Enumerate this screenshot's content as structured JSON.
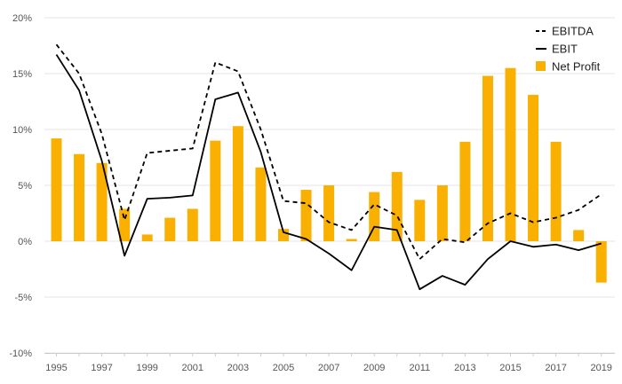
{
  "chart_data": {
    "type": "bar",
    "x": [
      1995,
      1996,
      1997,
      1998,
      1999,
      2000,
      2001,
      2002,
      2003,
      2004,
      2005,
      2006,
      2007,
      2008,
      2009,
      2010,
      2011,
      2012,
      2013,
      2014,
      2015,
      2016,
      2017,
      2018,
      2019
    ],
    "x_tick_labels": [
      "1995",
      "1997",
      "1999",
      "2001",
      "2003",
      "2005",
      "2007",
      "2009",
      "2011",
      "2013",
      "2015",
      "2017",
      "2019"
    ],
    "y_tick_labels": [
      "20%",
      "15%",
      "10%",
      "5%",
      "0%",
      "-5%",
      "-10%"
    ],
    "ylim": [
      -10,
      20
    ],
    "yunit": "%",
    "grid": "horizontal",
    "legend": "top-right",
    "series": [
      {
        "name": "EBITDA",
        "type": "line",
        "style": "dashed",
        "color": "#000000",
        "values": [
          17.6,
          15.0,
          9.6,
          1.9,
          7.9,
          8.1,
          8.3,
          16.0,
          15.2,
          10.0,
          3.6,
          3.4,
          1.7,
          1.0,
          3.3,
          2.3,
          -1.6,
          0.2,
          -0.1,
          1.6,
          2.5,
          1.7,
          2.1,
          2.8,
          4.2
        ]
      },
      {
        "name": "EBIT",
        "type": "line",
        "style": "solid",
        "color": "#000000",
        "values": [
          16.7,
          13.5,
          7.2,
          -1.3,
          3.8,
          3.9,
          4.1,
          12.7,
          13.3,
          8.0,
          0.8,
          0.2,
          -1.1,
          -2.6,
          1.3,
          1.0,
          -4.3,
          -3.1,
          -3.9,
          -1.6,
          0.0,
          -0.5,
          -0.3,
          -0.8,
          -0.2
        ]
      },
      {
        "name": "Net Profit",
        "type": "bar",
        "color": "#F9B000",
        "values": [
          9.2,
          7.8,
          7.0,
          2.9,
          0.6,
          2.1,
          2.9,
          9.0,
          10.3,
          6.6,
          1.1,
          4.6,
          5.0,
          0.2,
          4.4,
          6.2,
          3.7,
          5.0,
          8.9,
          14.8,
          15.5,
          13.1,
          8.9,
          1.0,
          -3.7
        ]
      }
    ]
  }
}
